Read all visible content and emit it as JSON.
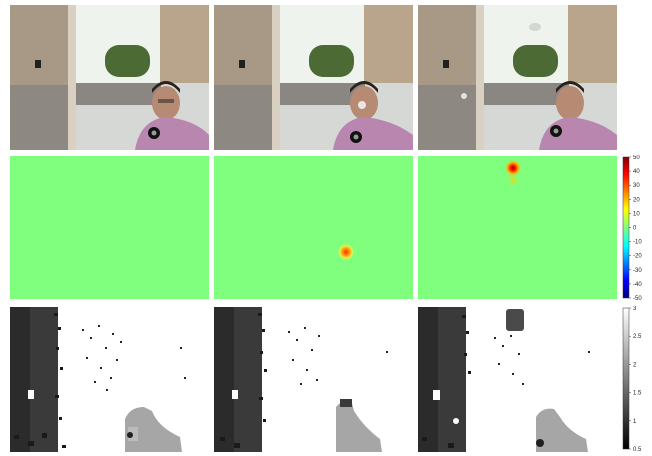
{
  "figure": {
    "rows": [
      {
        "row": "photographs",
        "columns": 3
      },
      {
        "row": "difference-heatmaps",
        "columns": 3
      },
      {
        "row": "depth-maps",
        "columns": 3
      }
    ],
    "heatmap_colorbar": {
      "colormap": "jet",
      "tick_labels": [
        "50",
        "40",
        "30",
        "20",
        "10",
        "0",
        "-10",
        "-20",
        "-30",
        "-40",
        "-50"
      ],
      "min": -50,
      "max": 50
    },
    "depth_colorbar": {
      "colormap": "gray",
      "tick_labels": [
        "3",
        "2.5",
        "2",
        "1.5",
        "1",
        "0.5"
      ],
      "min": 0.5,
      "max": 3
    },
    "heatmap_hotspots": [
      {
        "panel": 2,
        "peak_value": 30
      },
      {
        "panel": 3,
        "peak_value": 50
      }
    ]
  }
}
